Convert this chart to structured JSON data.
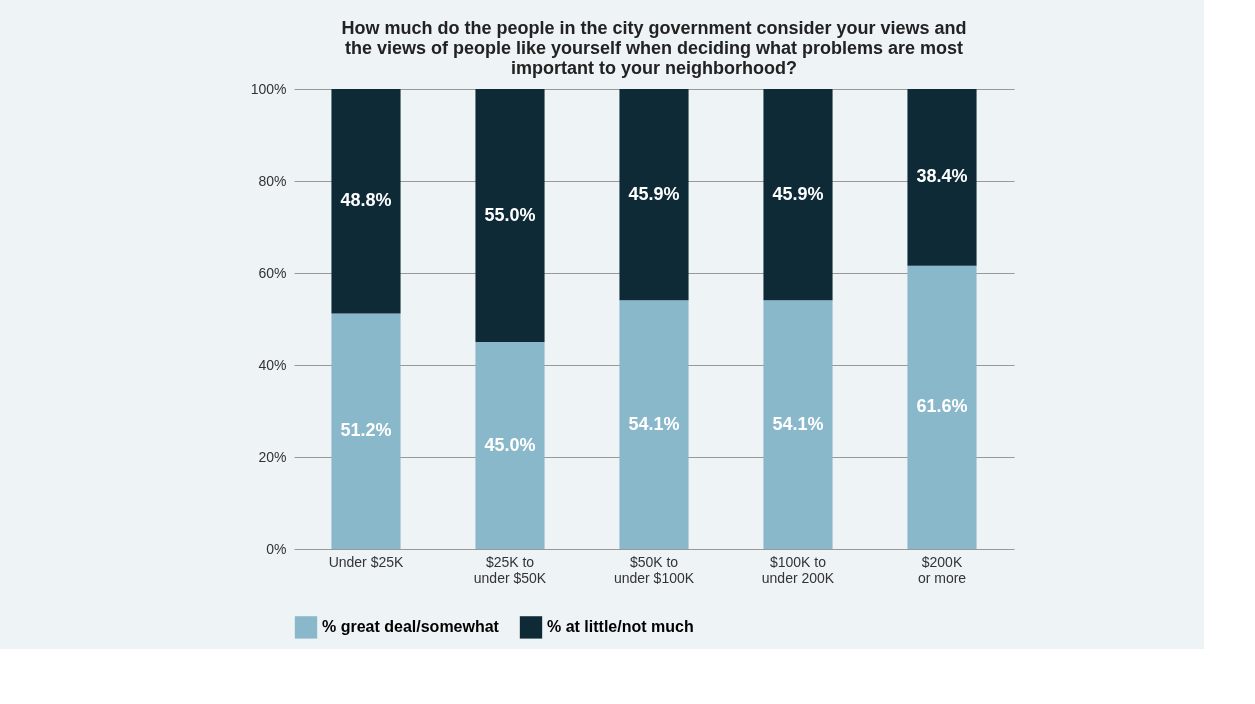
{
  "chart_data": {
    "type": "bar",
    "stacked": true,
    "title": "How much do the people in the city government consider your views and the views of people like yourself when deciding what problems are most important to your neighborhood?",
    "categories": [
      "Under $25K",
      "$25K to\nunder $50K",
      "$50K to\nunder $100K",
      "$100K to\nunder 200K",
      "$200K\nor more"
    ],
    "series": [
      {
        "name": "% great deal/somewhat",
        "color": "#8ab8cb",
        "values": [
          51.2,
          45.0,
          54.1,
          54.1,
          61.6
        ],
        "value_labels": [
          "51.2%",
          "45.0%",
          "54.1%",
          "54.1%",
          "61.6%"
        ]
      },
      {
        "name": "% at little/not much",
        "color": "#0d2a36",
        "values": [
          48.8,
          55.0,
          45.9,
          45.9,
          38.4
        ],
        "value_labels": [
          "48.8%",
          "55.0%",
          "45.9%",
          "45.9%",
          "38.4%"
        ]
      }
    ],
    "ylim": [
      0,
      100
    ],
    "yticks": [
      {
        "value": 0,
        "label": "0%"
      },
      {
        "value": 20,
        "label": "20%"
      },
      {
        "value": 40,
        "label": "40%"
      },
      {
        "value": 60,
        "label": "60%"
      },
      {
        "value": 80,
        "label": "80%"
      },
      {
        "value": 100,
        "label": "100%"
      }
    ],
    "grid": "y",
    "legend": "bottom"
  }
}
